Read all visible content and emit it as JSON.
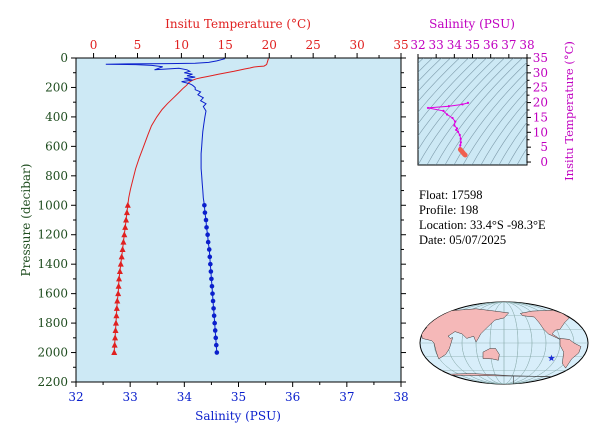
{
  "colors": {
    "plot_bg": "#cde9f5",
    "temperature": "#e02020",
    "salinity": "#0a1fcc",
    "ts_curve": "#e000e0",
    "pressure_axis": "#1f4d1f",
    "ts_axis": "#c000c0",
    "land": "#f5b8b8",
    "ocean": "#d8eefa",
    "float_marker": "#1b2fd8"
  },
  "float_info": {
    "float_line": "Float:  17598",
    "profile_line": "Profile:  198",
    "location_line": "Location:  33.4°S  -98.3°E",
    "date_line": "Date:  05/07/2025"
  },
  "map": {
    "projection": "world",
    "marker_icon": "star-icon",
    "marker": {
      "lat": -33.4,
      "lon": -98.3
    }
  },
  "chart_data": [
    {
      "type": "line",
      "title": "",
      "ylabel": "Pressure (decibar)",
      "yticks": [
        0,
        200,
        400,
        600,
        800,
        1000,
        1200,
        1400,
        1600,
        1800,
        2000,
        2200
      ],
      "ylim": [
        2200,
        0
      ],
      "grid": false,
      "x_top": {
        "label": "Insitu Temperature (°C)",
        "ticks": [
          0,
          5,
          10,
          15,
          20,
          25,
          30,
          35
        ],
        "lim": [
          -2,
          35
        ]
      },
      "x_bottom": {
        "label": "Salinity (PSU)",
        "ticks": [
          32,
          33,
          34,
          35,
          36,
          37,
          38
        ],
        "lim": [
          32,
          38
        ]
      },
      "series": [
        {
          "axis": "top",
          "marker": "triangle",
          "values": [
            [
              19.9,
              5
            ],
            [
              19.8,
              25
            ],
            [
              19.7,
              45
            ],
            [
              19.4,
              55
            ],
            [
              18.8,
              58
            ],
            [
              18.2,
              62
            ],
            [
              17.8,
              68
            ],
            [
              17.2,
              75
            ],
            [
              16.6,
              82
            ],
            [
              16.0,
              90
            ],
            [
              15.4,
              97
            ],
            [
              14.8,
              103
            ],
            [
              14.2,
              110
            ],
            [
              13.6,
              118
            ],
            [
              12.9,
              126
            ],
            [
              12.3,
              133
            ],
            [
              11.7,
              141
            ],
            [
              11.3,
              150
            ],
            [
              11.0,
              160
            ],
            [
              10.8,
              170
            ],
            [
              10.6,
              185
            ],
            [
              10.2,
              205
            ],
            [
              9.7,
              235
            ],
            [
              9.1,
              270
            ],
            [
              8.4,
              310
            ],
            [
              7.8,
              350
            ],
            [
              7.2,
              400
            ],
            [
              6.6,
              460
            ],
            [
              6.2,
              520
            ],
            [
              5.7,
              600
            ],
            [
              5.2,
              680
            ],
            [
              4.8,
              750
            ],
            [
              4.5,
              820
            ],
            [
              4.2,
              890
            ],
            [
              4.0,
              950
            ],
            [
              3.9,
              1000
            ],
            [
              3.8,
              1050
            ],
            [
              3.7,
              1100
            ],
            [
              3.6,
              1150
            ],
            [
              3.5,
              1200
            ],
            [
              3.4,
              1250
            ],
            [
              3.3,
              1300
            ],
            [
              3.2,
              1350
            ],
            [
              3.1,
              1400
            ],
            [
              3.0,
              1450
            ],
            [
              2.9,
              1500
            ],
            [
              2.85,
              1550
            ],
            [
              2.8,
              1600
            ],
            [
              2.7,
              1650
            ],
            [
              2.65,
              1700
            ],
            [
              2.6,
              1750
            ],
            [
              2.55,
              1800
            ],
            [
              2.5,
              1850
            ],
            [
              2.45,
              1900
            ],
            [
              2.4,
              1950
            ],
            [
              2.35,
              2000
            ]
          ],
          "marker_start_pressure": 1000
        },
        {
          "axis": "bottom",
          "marker": "circle",
          "values": [
            [
              34.75,
              5
            ],
            [
              34.6,
              20
            ],
            [
              34.45,
              30
            ],
            [
              34.2,
              35
            ],
            [
              33.7,
              38
            ],
            [
              32.95,
              40
            ],
            [
              32.55,
              42
            ],
            [
              33.1,
              45
            ],
            [
              33.4,
              50
            ],
            [
              33.6,
              60
            ],
            [
              33.45,
              80
            ],
            [
              33.9,
              70
            ],
            [
              34.05,
              80
            ],
            [
              34.1,
              90
            ],
            [
              34.0,
              100
            ],
            [
              34.15,
              110
            ],
            [
              34.05,
              120
            ],
            [
              34.2,
              130
            ],
            [
              34.0,
              140
            ],
            [
              34.15,
              150
            ],
            [
              33.95,
              160
            ],
            [
              34.1,
              175
            ],
            [
              34.15,
              185
            ],
            [
              34.2,
              200
            ],
            [
              34.2,
              215
            ],
            [
              34.3,
              230
            ],
            [
              34.25,
              250
            ],
            [
              34.35,
              270
            ],
            [
              34.3,
              290
            ],
            [
              34.4,
              310
            ],
            [
              34.35,
              330
            ],
            [
              34.4,
              360
            ],
            [
              34.38,
              400
            ],
            [
              34.36,
              450
            ],
            [
              34.34,
              500
            ],
            [
              34.33,
              550
            ],
            [
              34.32,
              600
            ],
            [
              34.31,
              650
            ],
            [
              34.31,
              700
            ],
            [
              34.31,
              750
            ],
            [
              34.32,
              800
            ],
            [
              34.33,
              850
            ],
            [
              34.34,
              900
            ],
            [
              34.35,
              950
            ],
            [
              34.37,
              1000
            ],
            [
              34.38,
              1050
            ],
            [
              34.4,
              1100
            ],
            [
              34.41,
              1150
            ],
            [
              34.43,
              1200
            ],
            [
              34.44,
              1250
            ],
            [
              34.46,
              1300
            ],
            [
              34.47,
              1350
            ],
            [
              34.48,
              1400
            ],
            [
              34.49,
              1450
            ],
            [
              34.5,
              1500
            ],
            [
              34.51,
              1550
            ],
            [
              34.52,
              1600
            ],
            [
              34.53,
              1650
            ],
            [
              34.54,
              1700
            ],
            [
              34.55,
              1750
            ],
            [
              34.56,
              1800
            ],
            [
              34.57,
              1850
            ],
            [
              34.58,
              1900
            ],
            [
              34.59,
              1950
            ],
            [
              34.6,
              2000
            ]
          ],
          "marker_start_pressure": 1000
        }
      ]
    },
    {
      "type": "scatter",
      "title": "Salinity (PSU)",
      "xlabel": "",
      "ylabel": "Insitu Temperature (°C)",
      "xticks": [
        32,
        33,
        34,
        35,
        36,
        37,
        38
      ],
      "yticks": [
        0,
        5,
        10,
        15,
        20,
        25,
        30,
        35
      ],
      "xlim": [
        32,
        38
      ],
      "ylim": [
        -1,
        35
      ],
      "background_lines": "density contours",
      "series": [
        {
          "values": [
            [
              34.75,
              19.9
            ],
            [
              34.45,
              19.4
            ],
            [
              33.7,
              18.8
            ],
            [
              32.55,
              18.2
            ],
            [
              33.4,
              17.2
            ],
            [
              33.6,
              16.0
            ],
            [
              33.9,
              14.8
            ],
            [
              34.05,
              13.6
            ],
            [
              34.0,
              12.3
            ],
            [
              34.15,
              11.3
            ],
            [
              34.1,
              10.8
            ],
            [
              34.2,
              10.2
            ],
            [
              34.3,
              9.1
            ],
            [
              34.35,
              7.8
            ],
            [
              34.36,
              6.6
            ],
            [
              34.33,
              5.7
            ],
            [
              34.31,
              4.8
            ],
            [
              34.33,
              4.2
            ],
            [
              34.37,
              3.9
            ],
            [
              34.43,
              3.5
            ],
            [
              34.48,
              3.1
            ],
            [
              34.52,
              2.8
            ],
            [
              34.56,
              2.55
            ],
            [
              34.6,
              2.35
            ]
          ]
        }
      ]
    }
  ]
}
